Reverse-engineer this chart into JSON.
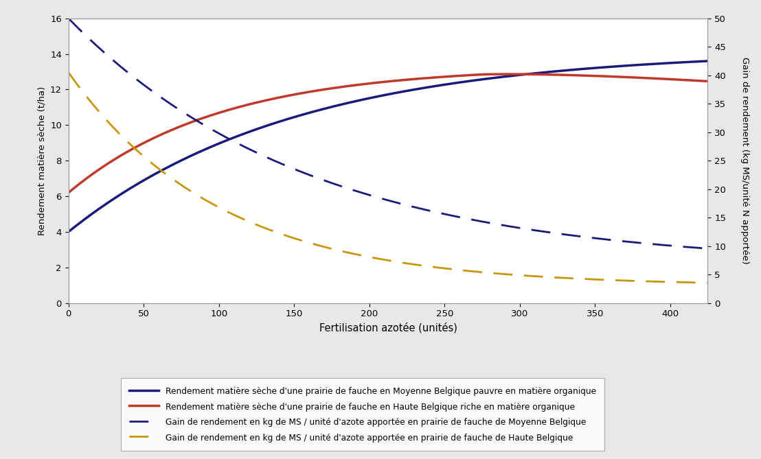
{
  "title": "",
  "xlabel": "Fertilisation azotée (unités)",
  "ylabel_left": "Rendement matière sèche (t/ha)",
  "ylabel_right": "Gain de rendement (kg MS/unité N apportée)",
  "xlim": [
    0,
    425
  ],
  "ylim_left": [
    0,
    16
  ],
  "ylim_right": [
    0,
    50
  ],
  "xticks": [
    0,
    50,
    100,
    150,
    200,
    250,
    300,
    350,
    400
  ],
  "yticks_left": [
    0,
    2,
    4,
    6,
    8,
    10,
    12,
    14,
    16
  ],
  "yticks_right": [
    0,
    5,
    10,
    15,
    20,
    25,
    30,
    35,
    40,
    45,
    50
  ],
  "line1_color": "#1a1a7a",
  "line2_color": "#c0392b",
  "line3_color": "#1a1a7a",
  "line4_color": "#c8960a",
  "line1_label": "Rendement matière sèche d'une prairie de fauche en Moyenne Belgique pauvre en matière organique",
  "line2_label": "Rendement matière sèche d'une prairie de fauche en Haute Belgique riche en matière organique",
  "line3_label": "Gain de rendement en kg de MS / unité d'azote apportée en prairie de fauche de Moyenne Belgique",
  "line4_label": "Gain de rendement en kg de MS / unité d'azote apportée en prairie de fauche de Haute Belgique",
  "fig_facecolor": "#e8e8e8",
  "plot_facecolor": "#ffffff"
}
